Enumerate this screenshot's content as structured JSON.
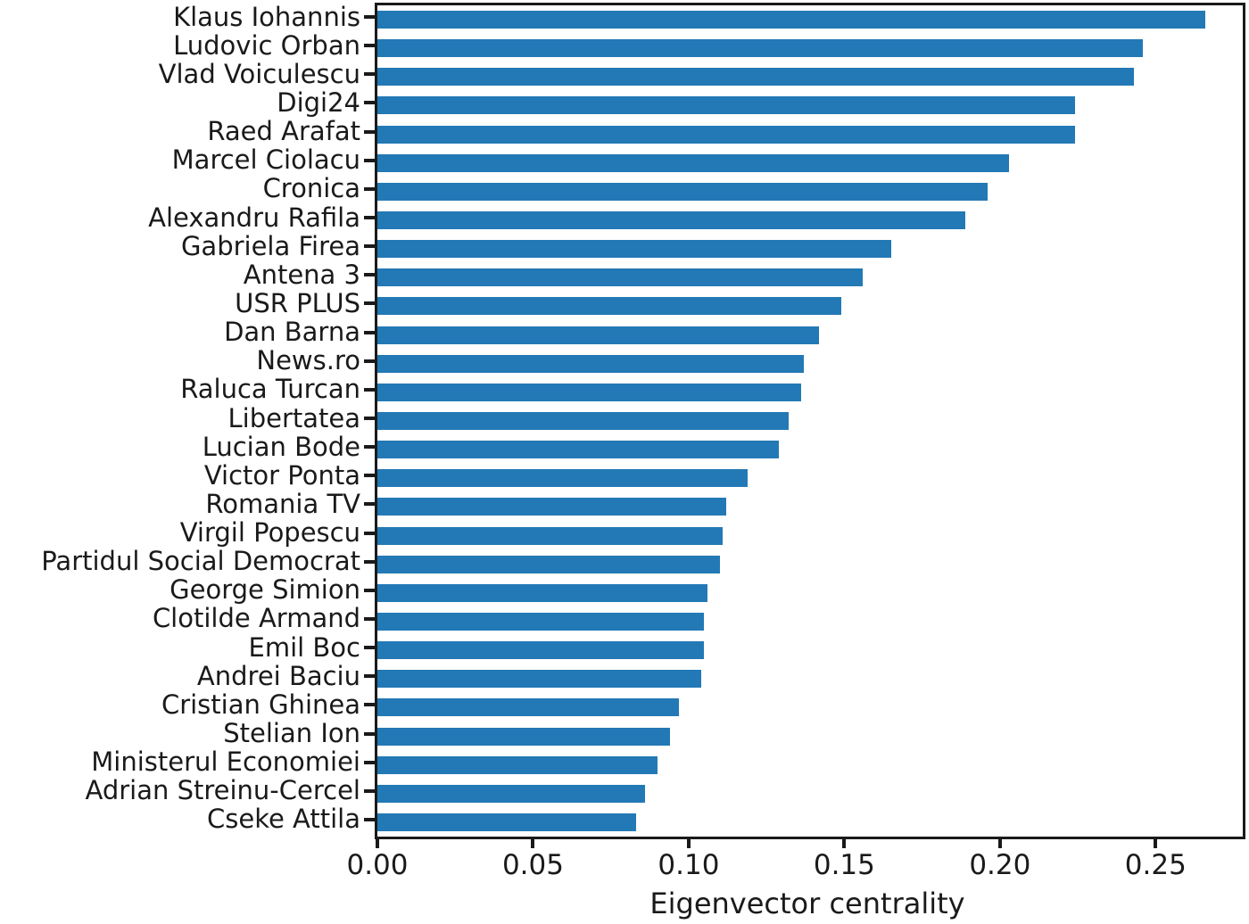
{
  "chart_data": {
    "type": "bar",
    "orientation": "horizontal",
    "title": "",
    "xlabel": "Eigenvector centrality",
    "ylabel": "",
    "xlim": [
      0,
      0.278
    ],
    "xticks": [
      0.0,
      0.05,
      0.1,
      0.15,
      0.2,
      0.25
    ],
    "grid": false,
    "legend": "none",
    "bar_color": "#2379b5",
    "axis_color": "#1a1a1a",
    "categories": [
      "Klaus Iohannis",
      "Ludovic Orban",
      "Vlad Voiculescu",
      "Digi24",
      "Raed Arafat",
      "Marcel Ciolacu",
      "Cronica",
      "Alexandru Rafila",
      "Gabriela Firea",
      "Antena 3",
      "USR PLUS",
      "Dan Barna",
      "News.ro",
      "Raluca Turcan",
      "Libertatea",
      "Lucian Bode",
      "Victor Ponta",
      "Romania TV",
      "Virgil Popescu",
      "Partidul Social Democrat",
      "George Simion",
      "Clotilde Armand",
      "Emil Boc",
      "Andrei Baciu",
      "Cristian Ghinea",
      "Stelian Ion",
      "Ministerul Economiei",
      "Adrian Streinu-Cercel",
      "Cseke Attila"
    ],
    "values": [
      0.266,
      0.246,
      0.243,
      0.224,
      0.224,
      0.203,
      0.196,
      0.189,
      0.165,
      0.156,
      0.149,
      0.142,
      0.137,
      0.136,
      0.132,
      0.129,
      0.119,
      0.112,
      0.111,
      0.11,
      0.106,
      0.105,
      0.105,
      0.104,
      0.097,
      0.094,
      0.09,
      0.086,
      0.083
    ]
  }
}
